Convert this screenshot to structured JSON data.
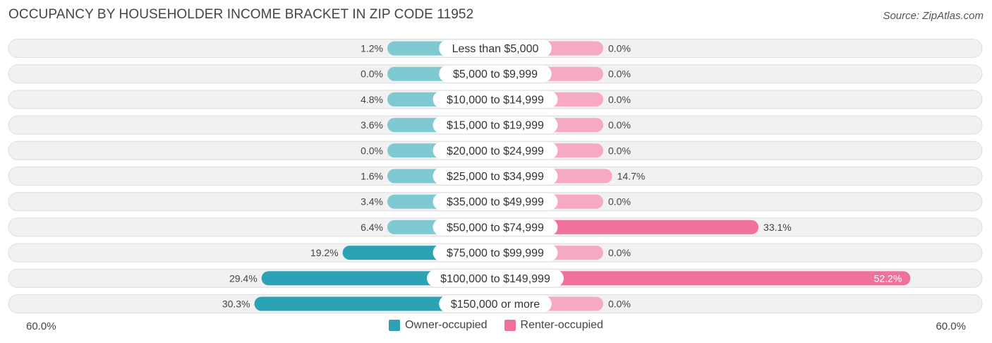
{
  "title": "OCCUPANCY BY HOUSEHOLDER INCOME BRACKET IN ZIP CODE 11952",
  "source": "Source: ZipAtlas.com",
  "legend": {
    "owner": "Owner-occupied",
    "renter": "Renter-occupied"
  },
  "axis": {
    "left_label": "60.0%",
    "right_label": "60.0%"
  },
  "colors": {
    "owner_light": "#7fc9d3",
    "owner_dark": "#2ba3b5",
    "renter_light": "#f5a9c3",
    "renter_dark": "#f0729c",
    "row_bg": "#f1f1f1",
    "row_border": "#dedede"
  },
  "chart_data": {
    "type": "bar",
    "orientation": "diverging-horizontal",
    "title": "OCCUPANCY BY HOUSEHOLDER INCOME BRACKET IN ZIP CODE 11952",
    "categories": [
      "Less than $5,000",
      "$5,000 to $9,999",
      "$10,000 to $14,999",
      "$15,000 to $19,999",
      "$20,000 to $24,999",
      "$25,000 to $34,999",
      "$35,000 to $49,999",
      "$50,000 to $74,999",
      "$75,000 to $99,999",
      "$100,000 to $149,999",
      "$150,000 or more"
    ],
    "series": [
      {
        "name": "Owner-occupied",
        "values": [
          1.2,
          0.0,
          4.8,
          3.6,
          0.0,
          1.6,
          3.4,
          6.4,
          19.2,
          29.4,
          30.3
        ],
        "labels": [
          "1.2%",
          "0.0%",
          "4.8%",
          "3.6%",
          "0.0%",
          "1.6%",
          "3.4%",
          "6.4%",
          "19.2%",
          "29.4%",
          "30.3%"
        ]
      },
      {
        "name": "Renter-occupied",
        "values": [
          0.0,
          0.0,
          0.0,
          0.0,
          0.0,
          14.7,
          0.0,
          33.1,
          0.0,
          52.2,
          0.0
        ],
        "labels": [
          "0.0%",
          "0.0%",
          "0.0%",
          "0.0%",
          "0.0%",
          "14.7%",
          "0.0%",
          "33.1%",
          "0.0%",
          "52.2%",
          "0.0%"
        ]
      }
    ],
    "xlim": [
      -60,
      60
    ],
    "xlabel_left": "60.0%",
    "xlabel_right": "60.0%"
  }
}
